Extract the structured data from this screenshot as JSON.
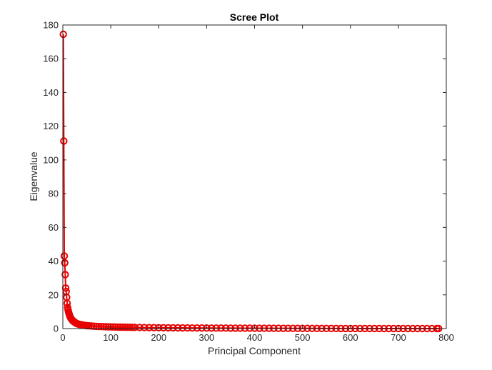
{
  "chart_data": {
    "type": "line",
    "title": "Scree Plot",
    "xlabel": "Principal Component",
    "ylabel": "Eigenvalue",
    "xlim": [
      0,
      800
    ],
    "ylim": [
      0,
      180
    ],
    "xticks": [
      "0",
      "100",
      "200",
      "300",
      "400",
      "500",
      "600",
      "700",
      "800"
    ],
    "yticks": [
      "0",
      "20",
      "40",
      "60",
      "80",
      "100",
      "120",
      "140",
      "160",
      "180"
    ],
    "grid": false,
    "marker": "circle",
    "color": "#e60000",
    "series": [
      {
        "x": [
          1,
          2,
          3,
          4,
          5,
          6,
          7,
          8,
          9,
          10,
          11,
          12,
          13,
          14,
          15,
          16,
          17,
          18,
          19,
          20,
          21,
          22,
          23,
          24,
          25,
          26,
          27,
          28,
          29,
          30,
          32,
          34,
          36,
          38,
          40,
          42,
          45,
          48,
          51,
          55,
          60,
          65,
          70,
          75,
          80,
          85,
          90,
          95,
          100,
          105,
          110,
          115,
          120,
          125,
          130,
          135,
          140,
          145,
          150,
          160,
          170,
          180,
          190,
          200,
          210,
          220,
          230,
          240,
          250,
          260,
          270,
          280,
          290,
          300,
          310,
          320,
          330,
          340,
          350,
          360,
          370,
          380,
          390,
          400,
          410,
          420,
          430,
          440,
          450,
          460,
          470,
          480,
          490,
          500,
          510,
          520,
          530,
          540,
          550,
          560,
          570,
          580,
          590,
          600,
          610,
          620,
          630,
          640,
          650,
          660,
          670,
          680,
          690,
          700,
          710,
          720,
          730,
          740,
          750,
          760,
          770,
          780,
          784
        ],
        "y": [
          174.5,
          111.2,
          43.0,
          39.0,
          32.0,
          24.0,
          22.0,
          18.5,
          15.0,
          12.5,
          11.0,
          9.8,
          8.7,
          7.9,
          7.1,
          6.5,
          6.0,
          5.6,
          5.2,
          4.9,
          4.6,
          4.3,
          4.1,
          3.9,
          3.7,
          3.5,
          3.3,
          3.2,
          3.0,
          2.9,
          2.7,
          2.5,
          2.4,
          2.3,
          2.2,
          2.1,
          1.9,
          1.8,
          1.7,
          1.6,
          1.5,
          1.4,
          1.3,
          1.25,
          1.2,
          1.15,
          1.1,
          1.05,
          1.0,
          0.95,
          0.9,
          0.88,
          0.85,
          0.82,
          0.8,
          0.77,
          0.75,
          0.72,
          0.7,
          0.65,
          0.6,
          0.57,
          0.54,
          0.5,
          0.48,
          0.46,
          0.44,
          0.42,
          0.4,
          0.38,
          0.36,
          0.35,
          0.33,
          0.32,
          0.3,
          0.29,
          0.28,
          0.27,
          0.26,
          0.25,
          0.24,
          0.23,
          0.22,
          0.21,
          0.2,
          0.19,
          0.18,
          0.17,
          0.16,
          0.15,
          0.14,
          0.13,
          0.12,
          0.11,
          0.1,
          0.09,
          0.08,
          0.07,
          0.06,
          0.05,
          0.05,
          0.04,
          0.04,
          0.03,
          0.03,
          0.02,
          0.02,
          0.01,
          0.01,
          0.01,
          0.0,
          0.0,
          0.0,
          0.0,
          0.0,
          0.0,
          0.0,
          0.0,
          0.0,
          0.0,
          0.0,
          0.0,
          0.0
        ]
      }
    ]
  }
}
